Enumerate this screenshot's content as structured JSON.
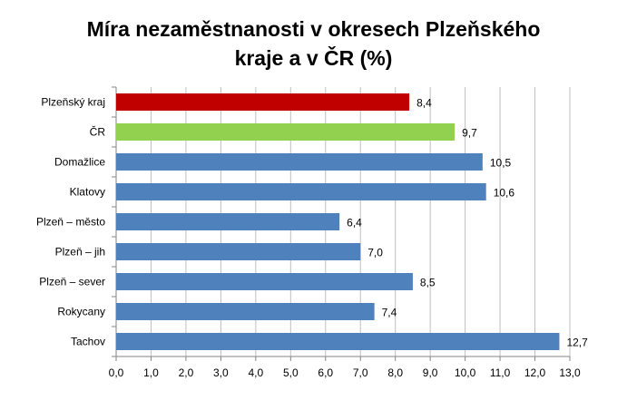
{
  "chart_data": {
    "type": "bar",
    "orientation": "horizontal",
    "title_lines": [
      "Míra nezaměstnanosti v okresech Plzeňského",
      "kraje a v ČR (%)"
    ],
    "categories": [
      "Plzeňský kraj",
      "ČR",
      "Domažlice",
      "Klatovy",
      "Plzeň – město",
      "Plzeň – jih",
      "Plzeň – sever",
      "Rokycany",
      "Tachov"
    ],
    "values": [
      8.4,
      9.7,
      10.5,
      10.6,
      6.4,
      7.0,
      8.5,
      7.4,
      12.7
    ],
    "value_labels": [
      "8,4",
      "9,7",
      "10,5",
      "10,6",
      "6,4",
      "7,0",
      "8,5",
      "7,4",
      "12,7"
    ],
    "bar_colors": [
      "#c00000",
      "#92d050",
      "#4f81bd",
      "#4f81bd",
      "#4f81bd",
      "#4f81bd",
      "#4f81bd",
      "#4f81bd",
      "#4f81bd"
    ],
    "xlim": [
      0,
      13
    ],
    "xticks": [
      "0,0",
      "1,0",
      "2,0",
      "3,0",
      "4,0",
      "5,0",
      "6,0",
      "7,0",
      "8,0",
      "9,0",
      "10,0",
      "11,0",
      "12,0",
      "13,0"
    ],
    "grid": "vertical",
    "legend": "none",
    "colors": {
      "grid": "#bfbfbf",
      "axis": "#868686"
    }
  }
}
